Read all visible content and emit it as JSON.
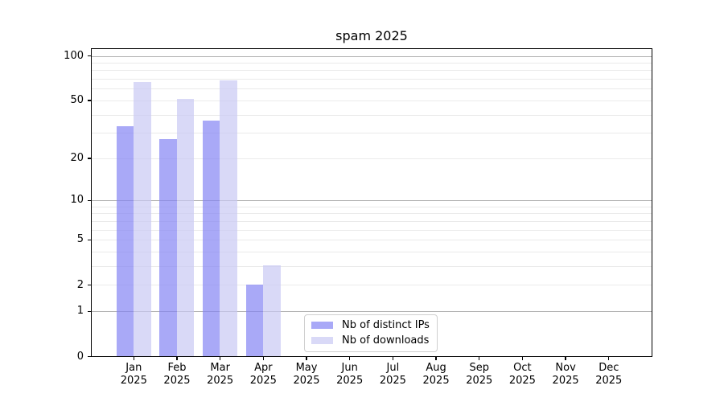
{
  "chart_data": {
    "type": "bar",
    "title": "spam 2025",
    "xlabel": "",
    "ylabel": "",
    "categories": [
      "Jan 2025",
      "Feb 2025",
      "Mar 2025",
      "Apr 2025",
      "May 2025",
      "Jun 2025",
      "Jul 2025",
      "Aug 2025",
      "Sep 2025",
      "Oct 2025",
      "Nov 2025",
      "Dec 2025"
    ],
    "series": [
      {
        "name": "Nb of distinct IPs",
        "values": [
          33,
          27,
          36,
          2,
          0,
          0,
          0,
          0,
          0,
          0,
          0,
          0
        ],
        "color": "#a9a9f7",
        "fill": "rgba(132,132,244,0.7)"
      },
      {
        "name": "Nb of downloads",
        "values": [
          66,
          51,
          68,
          3,
          0,
          0,
          0,
          0,
          0,
          0,
          0,
          0
        ],
        "color": "#d9d9f7",
        "fill": "rgba(201,201,244,0.7)"
      }
    ],
    "scale": "symlog (pixel position proportional to ln(1+value))",
    "yticks": [
      0,
      1,
      2,
      5,
      10,
      20,
      50,
      100
    ],
    "ylim": [
      0,
      112
    ],
    "grid": {
      "major_lines": [
        1,
        10,
        100
      ],
      "minor_lines": [
        2,
        3,
        4,
        5,
        6,
        7,
        8,
        9,
        20,
        30,
        40,
        50,
        60,
        70,
        80,
        90
      ],
      "major_color": "#b0b0b0",
      "minor_color": "#eaeaea"
    },
    "legend_position": "lower center, inside axes",
    "axis_color": "#000000",
    "background_color": "#ffffff"
  }
}
